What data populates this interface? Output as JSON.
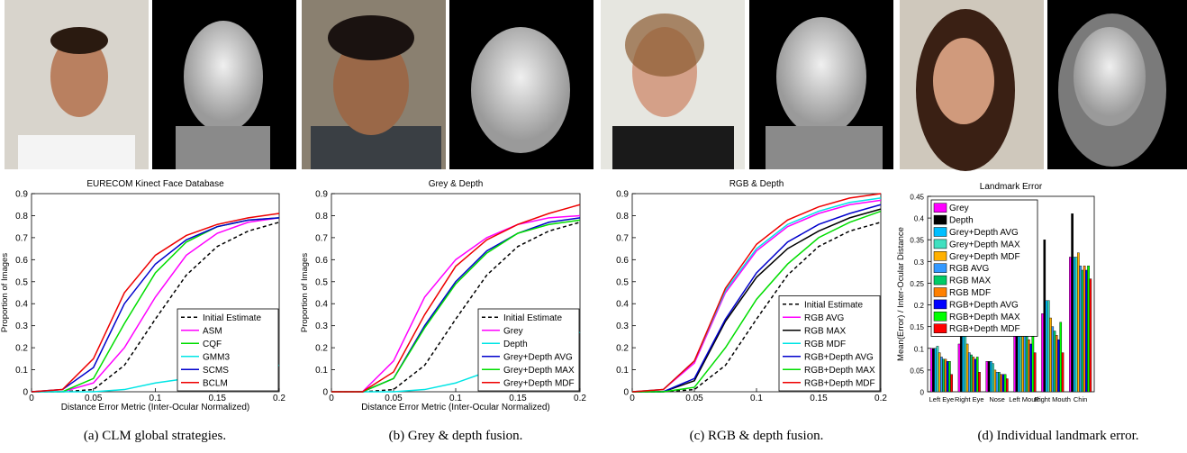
{
  "chart_data": [
    {
      "type": "line",
      "title": "EURECOM Kinect Face Database",
      "xlabel": "Distance Error Metric (Inter-Ocular Normalized)",
      "ylabel": "Proportion of Images",
      "x": [
        0,
        0.025,
        0.05,
        0.075,
        0.1,
        0.125,
        0.15,
        0.175,
        0.2
      ],
      "series": [
        {
          "name": "Initial Estimate",
          "color": "#000000",
          "dashed": true,
          "values": [
            0,
            0,
            0.01,
            0.12,
            0.33,
            0.53,
            0.66,
            0.73,
            0.77
          ]
        },
        {
          "name": "ASM",
          "color": "#ff00ff",
          "values": [
            0,
            0,
            0.04,
            0.2,
            0.43,
            0.62,
            0.72,
            0.77,
            0.79
          ]
        },
        {
          "name": "CQF",
          "color": "#00dd00",
          "values": [
            0,
            0,
            0.06,
            0.31,
            0.54,
            0.68,
            0.75,
            0.78,
            0.79
          ]
        },
        {
          "name": "GMM3",
          "color": "#00e5e5",
          "values": [
            0,
            0,
            0,
            0.01,
            0.04,
            0.06,
            0.08,
            0.1,
            0.12
          ]
        },
        {
          "name": "SCMS",
          "color": "#0000cc",
          "values": [
            0,
            0.01,
            0.11,
            0.4,
            0.58,
            0.69,
            0.75,
            0.78,
            0.79
          ]
        },
        {
          "name": "BCLM",
          "color": "#ee0000",
          "values": [
            0,
            0.01,
            0.15,
            0.45,
            0.62,
            0.71,
            0.76,
            0.79,
            0.81
          ]
        }
      ],
      "xlim": [
        0,
        0.2
      ],
      "ylim": [
        0,
        0.9
      ],
      "xticks": [
        0,
        0.05,
        0.1,
        0.15,
        0.2
      ],
      "yticks": [
        0,
        0.1,
        0.2,
        0.3,
        0.4,
        0.5,
        0.6,
        0.7,
        0.8,
        0.9
      ],
      "legend": "lower right",
      "caption": "(a)  CLM global strategies."
    },
    {
      "type": "line",
      "title": "Grey & Depth",
      "xlabel": "Distance Error Metric (Inter-Ocular Normalized)",
      "ylabel": "Proportion of Images",
      "x": [
        0,
        0.025,
        0.05,
        0.075,
        0.1,
        0.125,
        0.15,
        0.175,
        0.2
      ],
      "series": [
        {
          "name": "Initial Estimate",
          "color": "#000000",
          "dashed": true,
          "values": [
            0,
            0,
            0.01,
            0.12,
            0.33,
            0.53,
            0.66,
            0.73,
            0.77
          ]
        },
        {
          "name": "Grey",
          "color": "#ff00ff",
          "values": [
            0,
            0,
            0.14,
            0.43,
            0.6,
            0.7,
            0.76,
            0.79,
            0.8
          ]
        },
        {
          "name": "Depth",
          "color": "#00e5e5",
          "values": [
            0,
            0,
            0,
            0.01,
            0.04,
            0.09,
            0.15,
            0.22,
            0.27
          ]
        },
        {
          "name": "Grey+Depth AVG",
          "color": "#0000cc",
          "values": [
            0,
            0,
            0.06,
            0.3,
            0.5,
            0.64,
            0.72,
            0.77,
            0.79
          ]
        },
        {
          "name": "Grey+Depth MAX",
          "color": "#00dd00",
          "values": [
            0,
            0,
            0.06,
            0.29,
            0.49,
            0.63,
            0.72,
            0.76,
            0.78
          ]
        },
        {
          "name": "Grey+Depth MDF",
          "color": "#ee0000",
          "values": [
            0,
            0,
            0.09,
            0.35,
            0.57,
            0.69,
            0.76,
            0.81,
            0.85
          ]
        }
      ],
      "xlim": [
        0,
        0.2
      ],
      "ylim": [
        0,
        0.9
      ],
      "xticks": [
        0,
        0.05,
        0.1,
        0.15,
        0.2
      ],
      "yticks": [
        0,
        0.1,
        0.2,
        0.3,
        0.4,
        0.5,
        0.6,
        0.7,
        0.8,
        0.9
      ],
      "legend": "lower right",
      "caption": "(b)  Grey & depth fusion."
    },
    {
      "type": "line",
      "title": "RGB & Depth",
      "x": [
        0,
        0.025,
        0.05,
        0.075,
        0.1,
        0.125,
        0.15,
        0.175,
        0.2
      ],
      "series": [
        {
          "name": "Initial Estimate",
          "color": "#000000",
          "dashed": true,
          "values": [
            0,
            0,
            0.01,
            0.12,
            0.33,
            0.53,
            0.66,
            0.73,
            0.77
          ]
        },
        {
          "name": "RGB AVG",
          "color": "#ff00ff",
          "values": [
            0,
            0.01,
            0.13,
            0.45,
            0.64,
            0.75,
            0.81,
            0.85,
            0.87
          ]
        },
        {
          "name": "RGB MAX",
          "color": "#000000",
          "values": [
            0,
            0,
            0.05,
            0.32,
            0.52,
            0.65,
            0.73,
            0.79,
            0.83
          ]
        },
        {
          "name": "RGB MDF",
          "color": "#00e5e5",
          "values": [
            0,
            0.01,
            0.14,
            0.46,
            0.65,
            0.76,
            0.82,
            0.86,
            0.88
          ]
        },
        {
          "name": "RGB+Depth AVG",
          "color": "#0000cc",
          "values": [
            0,
            0,
            0.06,
            0.33,
            0.54,
            0.68,
            0.76,
            0.81,
            0.85
          ]
        },
        {
          "name": "RGB+Depth MAX",
          "color": "#00dd00",
          "values": [
            0,
            0,
            0.02,
            0.2,
            0.42,
            0.58,
            0.7,
            0.77,
            0.82
          ]
        },
        {
          "name": "RGB+Depth MDF",
          "color": "#ee0000",
          "values": [
            0,
            0.01,
            0.14,
            0.47,
            0.67,
            0.78,
            0.84,
            0.88,
            0.9
          ]
        }
      ],
      "xlim": [
        0,
        0.2
      ],
      "ylim": [
        0,
        0.9
      ],
      "xticks": [
        0,
        0.05,
        0.1,
        0.15,
        0.2
      ],
      "yticks": [
        0,
        0.1,
        0.2,
        0.3,
        0.4,
        0.5,
        0.6,
        0.7,
        0.8,
        0.9
      ],
      "legend": "lower right",
      "caption": "(c)  RGB & depth fusion."
    },
    {
      "type": "bar",
      "title": "Landmark Error",
      "ylabel": "Mean(Error) / Inter-Ocular Distance",
      "categories": [
        "Left Eye",
        "Right Eye",
        "Nose",
        "Left Mouth",
        "Right Mouth",
        "Chin"
      ],
      "series": [
        {
          "name": "Grey",
          "color": "#ff00ff",
          "values": [
            0.1,
            0.11,
            0.07,
            0.17,
            0.18,
            0.31
          ]
        },
        {
          "name": "Depth",
          "color": "#000000",
          "values": [
            0.1,
            0.13,
            0.07,
            0.31,
            0.35,
            0.41
          ]
        },
        {
          "name": "Grey+Depth AVG",
          "color": "#00bfff",
          "values": [
            0.1,
            0.14,
            0.07,
            0.18,
            0.21,
            0.31
          ]
        },
        {
          "name": "Grey+Depth MAX",
          "color": "#40e0c0",
          "values": [
            0.105,
            0.13,
            0.065,
            0.2,
            0.21,
            0.31
          ]
        },
        {
          "name": "Grey+Depth MDF",
          "color": "#ffb000",
          "values": [
            0.09,
            0.11,
            0.05,
            0.16,
            0.17,
            0.32
          ]
        },
        {
          "name": "RGB AVG",
          "color": "#3399ff",
          "values": [
            0.08,
            0.09,
            0.045,
            0.14,
            0.15,
            0.29
          ]
        },
        {
          "name": "RGB MAX",
          "color": "#00cc66",
          "values": [
            0.075,
            0.085,
            0.045,
            0.13,
            0.14,
            0.28
          ]
        },
        {
          "name": "RGB MDF",
          "color": "#ff8000",
          "values": [
            0.075,
            0.08,
            0.04,
            0.12,
            0.13,
            0.29
          ]
        },
        {
          "name": "RGB+Depth AVG",
          "color": "#0000ff",
          "values": [
            0.07,
            0.075,
            0.04,
            0.11,
            0.12,
            0.28
          ]
        },
        {
          "name": "RGB+Depth MAX",
          "color": "#00ff00",
          "values": [
            0.07,
            0.08,
            0.04,
            0.16,
            0.16,
            0.29
          ]
        },
        {
          "name": "RGB+Depth MDF",
          "color": "#ff0000",
          "values": [
            0.04,
            0.045,
            0.03,
            0.09,
            0.09,
            0.26
          ]
        }
      ],
      "ylim": [
        0,
        0.45
      ],
      "yticks": [
        0,
        0.05,
        0.1,
        0.15,
        0.2,
        0.25,
        0.3,
        0.35,
        0.4,
        0.45
      ],
      "legend": "upper left",
      "caption": "(d)  Individual landmark error."
    }
  ]
}
